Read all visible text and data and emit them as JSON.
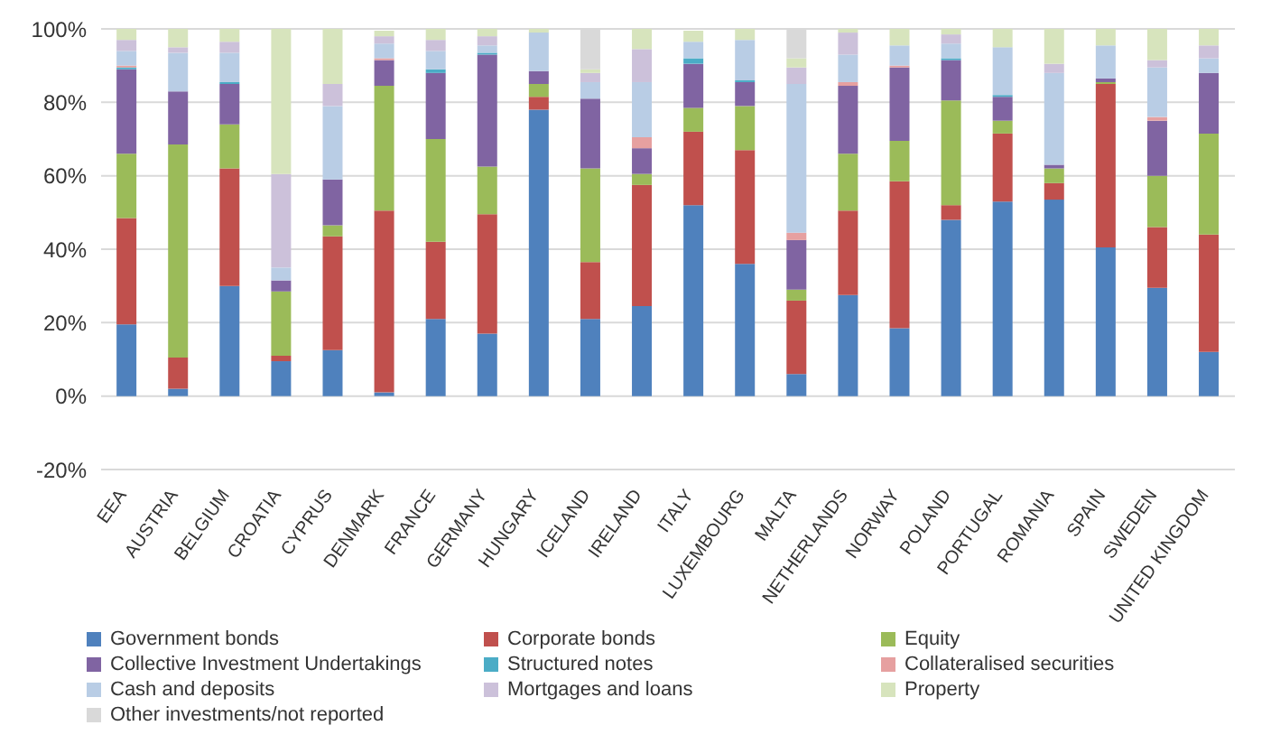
{
  "chart_data": {
    "type": "bar",
    "stacked": true,
    "categories": [
      "EEA",
      "AUSTRIA",
      "BELGIUM",
      "CROATIA",
      "CYPRUS",
      "DENMARK",
      "FRANCE",
      "GERMANY",
      "HUNGARY",
      "ICELAND",
      "IRELAND",
      "ITALY",
      "LUXEMBOURG",
      "MALTA",
      "NETHERLANDS",
      "NORWAY",
      "POLAND",
      "PORTUGAL",
      "ROMANIA",
      "SPAIN",
      "SWEDEN",
      "UNITED KINGDOM"
    ],
    "series": [
      {
        "name": "Government bonds",
        "color": "#4f81bd",
        "values": [
          19.5,
          2,
          30,
          9.5,
          12.5,
          1,
          21,
          17,
          78,
          21,
          24.5,
          52,
          36,
          6,
          27.5,
          18.5,
          48,
          53,
          53.5,
          40.5,
          29.5,
          12
        ]
      },
      {
        "name": "Corporate bonds",
        "color": "#c0504d",
        "values": [
          29,
          8.5,
          32,
          1.5,
          31,
          49.5,
          21,
          32.5,
          3.5,
          15.5,
          33,
          20,
          31,
          20,
          23,
          40,
          4,
          18.5,
          4.5,
          44.5,
          16.5,
          32
        ]
      },
      {
        "name": "Equity",
        "color": "#9bbb59",
        "values": [
          17.5,
          58,
          12,
          17.5,
          3,
          34,
          28,
          13,
          3.5,
          25.5,
          3,
          6.5,
          12,
          3,
          15.5,
          11,
          28.5,
          3.5,
          4,
          0.5,
          14,
          27.5
        ]
      },
      {
        "name": "Collective Investment Undertakings",
        "color": "#8064a2",
        "values": [
          23,
          14.5,
          11,
          3,
          12.5,
          7,
          18,
          30.5,
          3.5,
          19,
          7,
          12,
          6.5,
          13.5,
          18.5,
          20,
          11,
          6.5,
          1,
          1,
          15,
          16.5
        ]
      },
      {
        "name": "Structured notes",
        "color": "#4bacc6",
        "values": [
          0.5,
          0,
          0.5,
          0,
          0,
          0,
          1,
          0.5,
          0,
          0,
          0,
          1.5,
          0.5,
          0,
          0,
          0,
          0.5,
          0.5,
          0,
          0,
          0,
          0
        ]
      },
      {
        "name": "Collateralised securities",
        "color": "#e6a0a0",
        "values": [
          0.5,
          0,
          0,
          0,
          0,
          0.5,
          0,
          0,
          0,
          0,
          3,
          0,
          0,
          2,
          1,
          0.5,
          0,
          0,
          0,
          0,
          1,
          0
        ]
      },
      {
        "name": "Cash and deposits",
        "color": "#b9cde5",
        "values": [
          4,
          10.5,
          8,
          3.5,
          20,
          4,
          5,
          2,
          10.5,
          4.5,
          15,
          4.5,
          11,
          40.5,
          7.5,
          5.5,
          4,
          13,
          25,
          9,
          13.5,
          4
        ]
      },
      {
        "name": "Mortgages and loans",
        "color": "#ccc1da",
        "values": [
          3,
          1.5,
          3,
          25.5,
          6,
          2,
          3,
          2.5,
          0,
          2.5,
          9,
          null,
          0,
          4.5,
          6,
          0,
          2.5,
          0,
          2.5,
          0,
          2,
          3.5
        ]
      },
      {
        "name": "Property",
        "color": "#d7e4bd",
        "values": [
          3,
          5,
          3.5,
          39.5,
          15,
          1.5,
          3,
          2,
          1,
          1,
          5.5,
          3,
          3,
          2.5,
          1,
          4.5,
          1.5,
          5,
          9.5,
          4.5,
          8.5,
          4.5
        ]
      },
      {
        "name": "Other investments/not reported",
        "color": "#d9d9d9",
        "values": [
          0,
          0,
          0,
          0,
          0,
          null,
          0,
          0,
          0,
          11,
          0,
          0,
          0,
          8,
          0,
          0,
          0,
          0,
          0,
          0,
          0,
          0
        ]
      }
    ],
    "ylim": [
      -20,
      100
    ],
    "yticks": [
      {
        "value": -20,
        "label": "-20%"
      },
      {
        "value": 0,
        "label": "0%"
      },
      {
        "value": 20,
        "label": "20%"
      },
      {
        "value": 40,
        "label": "40%"
      },
      {
        "value": 60,
        "label": "60%"
      },
      {
        "value": 80,
        "label": "80%"
      },
      {
        "value": 100,
        "label": "100%"
      }
    ],
    "grid": "y",
    "legend": "bottom"
  }
}
